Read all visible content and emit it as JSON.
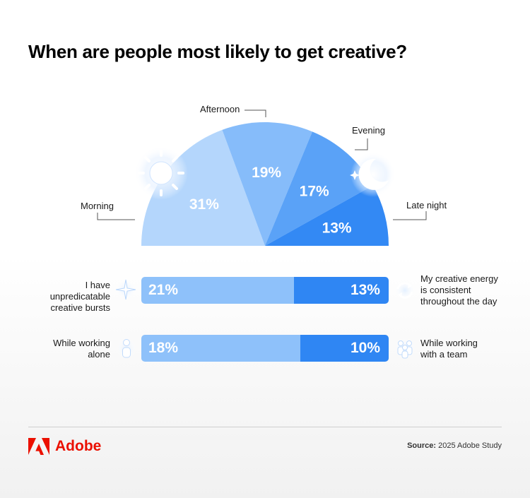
{
  "title": "When are people most likely to get creative?",
  "colors": {
    "morning": "#b4d6fc",
    "afternoon": "#86bcfa",
    "evening": "#5aa2f7",
    "late_night": "#3389f4",
    "bar_light": "#8ec1fa",
    "bar_dark": "#2f86f3",
    "brand": "#eb1000"
  },
  "chart_data": [
    {
      "type": "pie",
      "layout": "half-donut",
      "categories": [
        "Morning",
        "Afternoon",
        "Evening",
        "Late night"
      ],
      "values": [
        31,
        19,
        17,
        13
      ],
      "value_labels": [
        "31%",
        "19%",
        "17%",
        "13%"
      ],
      "icons": [
        "sun-icon",
        "moon-stars-icon"
      ]
    },
    {
      "type": "bar",
      "layout": "stacked-horizontal",
      "rows": [
        {
          "left_label": "I have unpredicatable creative bursts",
          "left_value": 21,
          "left_value_label": "21%",
          "left_icon": "sparkle-icon",
          "right_label": "My creative energy is consistent throughout the day",
          "right_value": 13,
          "right_value_label": "13%",
          "right_icon": "cycle-icon"
        },
        {
          "left_label": "While working alone",
          "left_value": 18,
          "left_value_label": "18%",
          "left_icon": "person-icon",
          "right_label": "While working with a team",
          "right_value": 10,
          "right_value_label": "10%",
          "right_icon": "team-icon"
        }
      ]
    }
  ],
  "footer": {
    "brand": "Adobe",
    "source_label": "Source:",
    "source_text": " 2025 Adobe Study"
  }
}
